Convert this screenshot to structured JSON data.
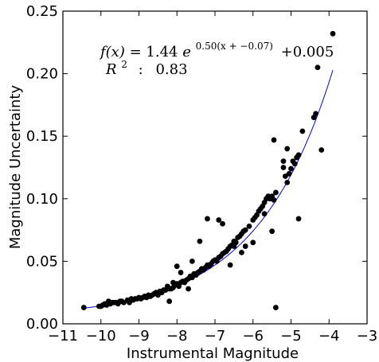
{
  "chart_data": {
    "type": "scatter",
    "title": "",
    "xlabel": "Instrumental Magnitude",
    "ylabel": "Magnitude Uncertainty",
    "xlim": [
      -11,
      -3
    ],
    "ylim": [
      0.0,
      0.25
    ],
    "xticks": [
      -11,
      -10,
      -9,
      -8,
      -7,
      -6,
      -5,
      -4,
      -3
    ],
    "xtick_labels": [
      "−11",
      "−10",
      "−9",
      "−8",
      "−7",
      "−6",
      "−5",
      "−4",
      "−3"
    ],
    "yticks": [
      0.0,
      0.05,
      0.1,
      0.15,
      0.2,
      0.25
    ],
    "ytick_labels": [
      "0.00",
      "0.05",
      "0.10",
      "0.15",
      "0.20",
      "0.25"
    ],
    "grid": false,
    "colors": {
      "points": "#000000",
      "fit": "#0000ff",
      "axes": "#000000"
    },
    "fit": {
      "type": "line",
      "label_lhs": "f(x)",
      "label_eq": "=",
      "label_coef": "1.44",
      "label_base": "e",
      "label_exponent": "0.50(x + −0.07)",
      "label_offset": "+0.005",
      "r2_label": "R",
      "r2_sup": "2",
      "r2_sep": ":",
      "r2_value": "0.83",
      "A": 1.44,
      "k": 0.5,
      "x0": -0.07,
      "c": 0.005,
      "x_range": [
        -10.45,
        -3.9
      ]
    },
    "points": [
      [
        -10.45,
        0.013
      ],
      [
        -10.05,
        0.014
      ],
      [
        -10.0,
        0.014
      ],
      [
        -9.95,
        0.015
      ],
      [
        -9.9,
        0.016
      ],
      [
        -9.85,
        0.015
      ],
      [
        -9.8,
        0.018
      ],
      [
        -9.75,
        0.016
      ],
      [
        -9.7,
        0.017
      ],
      [
        -9.65,
        0.017
      ],
      [
        -9.6,
        0.017
      ],
      [
        -9.55,
        0.016
      ],
      [
        -9.5,
        0.018
      ],
      [
        -9.45,
        0.018
      ],
      [
        -9.4,
        0.017
      ],
      [
        -9.3,
        0.019
      ],
      [
        -9.25,
        0.017
      ],
      [
        -9.2,
        0.02
      ],
      [
        -9.15,
        0.019
      ],
      [
        -9.1,
        0.02
      ],
      [
        -9.05,
        0.02
      ],
      [
        -9.0,
        0.021
      ],
      [
        -8.95,
        0.02
      ],
      [
        -8.9,
        0.021
      ],
      [
        -8.85,
        0.022
      ],
      [
        -8.8,
        0.021
      ],
      [
        -8.75,
        0.023
      ],
      [
        -8.7,
        0.022
      ],
      [
        -8.65,
        0.023
      ],
      [
        -8.6,
        0.024
      ],
      [
        -8.55,
        0.025
      ],
      [
        -8.5,
        0.023
      ],
      [
        -8.45,
        0.026
      ],
      [
        -8.4,
        0.025
      ],
      [
        -8.35,
        0.027
      ],
      [
        -8.3,
        0.027
      ],
      [
        -8.25,
        0.03
      ],
      [
        -8.2,
        0.028
      ],
      [
        -8.15,
        0.028
      ],
      [
        -8.1,
        0.029
      ],
      [
        -8.1,
        0.033
      ],
      [
        -8.05,
        0.031
      ],
      [
        -8.0,
        0.032
      ],
      [
        -7.95,
        0.03
      ],
      [
        -7.9,
        0.033
      ],
      [
        -7.85,
        0.034
      ],
      [
        -7.8,
        0.033
      ],
      [
        -7.75,
        0.035
      ],
      [
        -7.7,
        0.036
      ],
      [
        -7.65,
        0.038
      ],
      [
        -7.6,
        0.037
      ],
      [
        -7.55,
        0.04
      ],
      [
        -7.5,
        0.039
      ],
      [
        -7.45,
        0.041
      ],
      [
        -7.4,
        0.042
      ],
      [
        -7.35,
        0.044
      ],
      [
        -7.3,
        0.043
      ],
      [
        -7.25,
        0.045
      ],
      [
        -7.2,
        0.047
      ],
      [
        -7.15,
        0.046
      ],
      [
        -7.1,
        0.048
      ],
      [
        -7.05,
        0.05
      ],
      [
        -7.0,
        0.051
      ],
      [
        -6.95,
        0.05
      ],
      [
        -6.9,
        0.053
      ],
      [
        -6.85,
        0.054
      ],
      [
        -6.8,
        0.056
      ],
      [
        -6.75,
        0.057
      ],
      [
        -6.7,
        0.058
      ],
      [
        -6.65,
        0.06
      ],
      [
        -6.6,
        0.062
      ],
      [
        -6.55,
        0.063
      ],
      [
        -6.5,
        0.066
      ],
      [
        -6.45,
        0.065
      ],
      [
        -6.4,
        0.069
      ],
      [
        -6.35,
        0.07
      ],
      [
        -6.3,
        0.072
      ],
      [
        -6.25,
        0.074
      ],
      [
        -6.2,
        0.075
      ],
      [
        -6.1,
        0.078
      ],
      [
        -6.0,
        0.083
      ],
      [
        -5.95,
        0.085
      ],
      [
        -5.9,
        0.087
      ],
      [
        -5.85,
        0.09
      ],
      [
        -5.8,
        0.092
      ],
      [
        -5.75,
        0.094
      ],
      [
        -5.7,
        0.097
      ],
      [
        -5.65,
        0.1
      ],
      [
        -5.6,
        0.102
      ],
      [
        -5.55,
        0.1
      ],
      [
        -5.5,
        0.102
      ],
      [
        -5.45,
        0.099
      ],
      [
        -5.4,
        0.105
      ],
      [
        -5.2,
        0.125
      ],
      [
        -5.15,
        0.118
      ],
      [
        -5.1,
        0.113
      ],
      [
        -5.05,
        0.12
      ],
      [
        -5.0,
        0.124
      ],
      [
        -4.95,
        0.13
      ],
      [
        -4.9,
        0.128
      ],
      [
        -4.85,
        0.133
      ],
      [
        -4.8,
        0.135
      ],
      [
        -4.4,
        0.165
      ],
      [
        -4.35,
        0.168
      ],
      [
        -8.2,
        0.018
      ],
      [
        -8.0,
        0.046
      ],
      [
        -7.6,
        0.05
      ],
      [
        -7.4,
        0.066
      ],
      [
        -7.2,
        0.084
      ],
      [
        -6.9,
        0.083
      ],
      [
        -6.8,
        0.08
      ],
      [
        -6.6,
        0.047
      ],
      [
        -6.5,
        0.062
      ],
      [
        -6.3,
        0.057
      ],
      [
        -6.2,
        0.062
      ],
      [
        -6.0,
        0.065
      ],
      [
        -5.7,
        0.088
      ],
      [
        -5.5,
        0.074
      ],
      [
        -5.45,
        0.147
      ],
      [
        -5.4,
        0.013
      ],
      [
        -5.2,
        0.13
      ],
      [
        -5.1,
        0.14
      ],
      [
        -4.8,
        0.084
      ],
      [
        -4.7,
        0.154
      ],
      [
        -4.3,
        0.205
      ],
      [
        -4.2,
        0.139
      ],
      [
        -3.9,
        0.232
      ],
      [
        -7.9,
        0.041
      ],
      [
        -7.7,
        0.028
      ]
    ]
  }
}
